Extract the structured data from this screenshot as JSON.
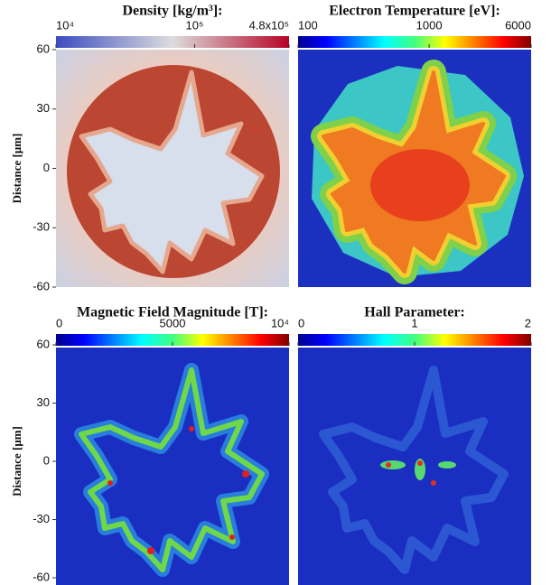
{
  "chart_data": [
    {
      "type": "heatmap",
      "title": "Density [kg/m³]:",
      "ylabel": "Distance [μm]",
      "ylim": [
        -60,
        60
      ],
      "yticks": [
        -60,
        -30,
        0,
        30,
        60
      ],
      "colorbar": {
        "scale": "log",
        "colormap": "coolwarm",
        "lim": [
          10000,
          480000
        ],
        "ticks": [
          {
            "value": 10000,
            "label": "10⁴"
          },
          {
            "value": 100000,
            "label": "10⁵"
          },
          {
            "value": 480000,
            "label": "4.8x10⁵"
          }
        ]
      }
    },
    {
      "type": "heatmap",
      "title": "Electron Temperature [eV]:",
      "colorbar": {
        "scale": "log",
        "colormap": "jet",
        "lim": [
          100,
          6000
        ],
        "ticks": [
          100,
          1000,
          6000
        ]
      }
    },
    {
      "type": "heatmap",
      "title": "Magnetic Field Magnitude [T]:",
      "ylabel": "Distance [μm]",
      "ylim": [
        -60,
        60
      ],
      "yticks": [
        -60,
        -30,
        0,
        30,
        60
      ],
      "colorbar": {
        "scale": "linear",
        "colormap": "jet",
        "lim": [
          0,
          10000
        ],
        "ticks": [
          0,
          5000,
          {
            "value": 10000,
            "label": "10⁴"
          }
        ]
      }
    },
    {
      "type": "heatmap",
      "title": "Hall Parameter:",
      "colorbar": {
        "scale": "linear",
        "colormap": "jet",
        "lim": [
          0,
          2
        ],
        "ticks": [
          0,
          1,
          2
        ]
      }
    }
  ]
}
